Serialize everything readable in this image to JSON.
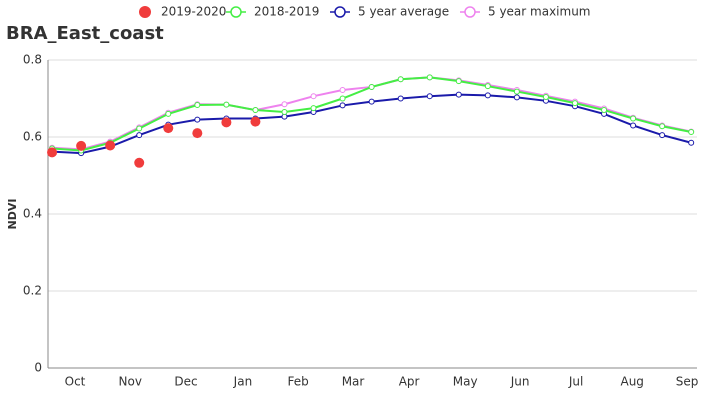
{
  "chart_data": {
    "type": "line",
    "title": "BRA_East_coast",
    "y_label": "NDVI",
    "categories": [
      null,
      null,
      null,
      null,
      null,
      null,
      null,
      null,
      null,
      null,
      null,
      null,
      null,
      null,
      null,
      null,
      null,
      null,
      null,
      null,
      null,
      null,
      null
    ],
    "xlim": [
      -0.14,
      22.2
    ],
    "xticks": [
      {
        "value": 0.79,
        "label": "Oct"
      },
      {
        "value": 2.69,
        "label": "Nov"
      },
      {
        "value": 4.61,
        "label": "Dec"
      },
      {
        "value": 6.57,
        "label": "Jan"
      },
      {
        "value": 8.47,
        "label": "Feb"
      },
      {
        "value": 10.36,
        "label": "Mar"
      },
      {
        "value": 12.29,
        "label": "Apr"
      },
      {
        "value": 14.22,
        "label": "May"
      },
      {
        "value": 16.11,
        "label": "Jun"
      },
      {
        "value": 18.04,
        "label": "Jul"
      },
      {
        "value": 19.97,
        "label": "Aug"
      },
      {
        "value": 21.86,
        "label": "Sep"
      }
    ],
    "ylim": [
      0,
      0.8
    ],
    "yticks": [
      0,
      0.2,
      0.4,
      0.6,
      0.8
    ],
    "grid": true,
    "series": [
      {
        "name": "2019-2020",
        "color": "#f03c3c",
        "style": "dots",
        "values": [
          0.56,
          0.577,
          0.578,
          0.533,
          0.623,
          0.61,
          0.638,
          0.64,
          null,
          null,
          null,
          null,
          null,
          null,
          null,
          null,
          null,
          null,
          null,
          null,
          null,
          null,
          null
        ]
      },
      {
        "name": "2018-2019",
        "color": "#44ee44",
        "style": "line",
        "values": [
          0.57,
          0.565,
          0.585,
          0.622,
          0.66,
          0.683,
          0.684,
          0.67,
          0.665,
          0.675,
          0.7,
          0.73,
          0.75,
          0.755,
          0.745,
          0.732,
          0.718,
          0.704,
          0.688,
          0.67,
          0.648,
          0.628,
          0.613
        ]
      },
      {
        "name": "5 year average",
        "color": "#1a1aaa",
        "style": "line",
        "values": [
          0.562,
          0.558,
          0.575,
          0.605,
          0.632,
          0.645,
          0.648,
          0.648,
          0.653,
          0.665,
          0.682,
          0.692,
          0.7,
          0.706,
          0.71,
          0.708,
          0.703,
          0.694,
          0.68,
          0.66,
          0.63,
          0.605,
          0.585
        ]
      },
      {
        "name": "5 year maximum",
        "color": "#ee82ee",
        "style": "line",
        "values": [
          0.572,
          0.568,
          0.588,
          0.625,
          0.663,
          0.685,
          0.684,
          0.67,
          0.685,
          0.706,
          0.722,
          0.73,
          0.75,
          0.755,
          0.747,
          0.735,
          0.722,
          0.707,
          0.692,
          0.674,
          0.65,
          0.63,
          0.614
        ]
      }
    ]
  }
}
